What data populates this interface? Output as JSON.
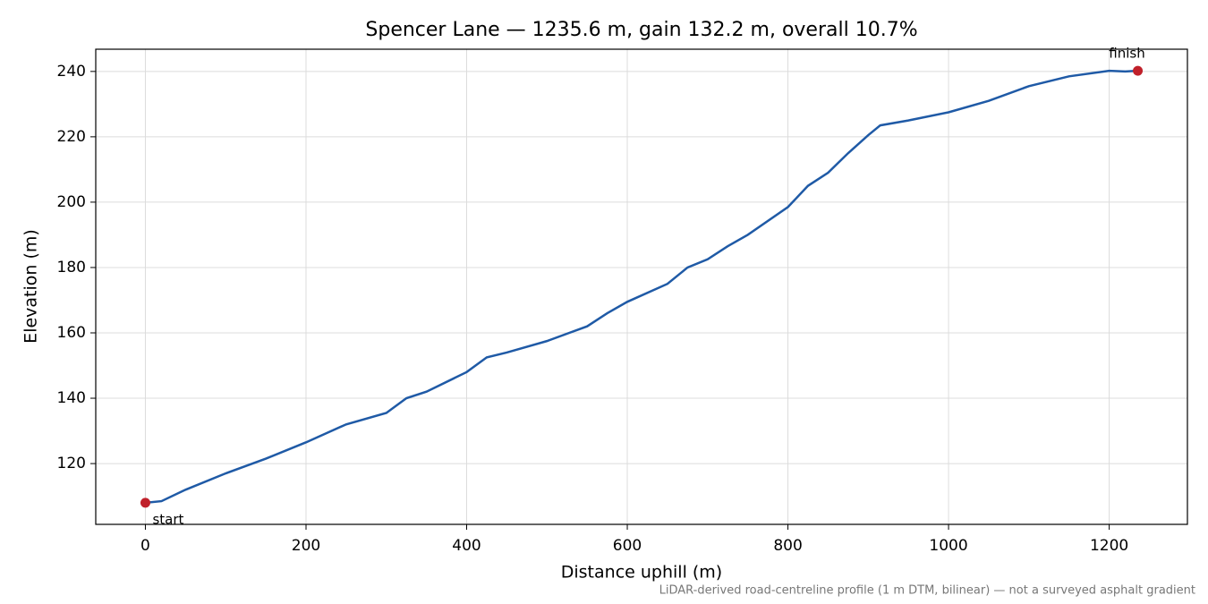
{
  "chart_data": {
    "type": "line",
    "title": "Spencer Lane — 1235.6 m, gain 132.2 m, overall 10.7%",
    "x_label": "Distance uphill (m)",
    "y_label": "Elevation (m)",
    "note": "LiDAR-derived road-centreline profile (1 m DTM, bilinear) — not a surveyed asphalt gradient",
    "x": [
      0,
      20,
      50,
      100,
      150,
      200,
      250,
      300,
      325,
      350,
      400,
      425,
      450,
      500,
      550,
      575,
      600,
      650,
      675,
      700,
      725,
      750,
      800,
      825,
      850,
      875,
      900,
      915,
      950,
      1000,
      1050,
      1100,
      1150,
      1200,
      1220,
      1235.6
    ],
    "values": [
      108.0,
      108.5,
      112,
      117,
      121.5,
      126.5,
      132,
      135.5,
      140,
      142,
      148,
      152.5,
      154,
      157.5,
      162,
      166,
      169.5,
      175,
      180,
      182.5,
      186.5,
      190,
      198.5,
      205,
      209,
      215,
      220.5,
      223.5,
      225,
      227.5,
      231,
      235.5,
      238.5,
      240.2,
      240,
      240.2
    ],
    "color": "#1f5aa6",
    "markers": [
      {
        "label": "start",
        "x": 0,
        "y": 108.0
      },
      {
        "label": "finish",
        "x": 1235.6,
        "y": 240.2
      }
    ],
    "marker_color": "#c0202a",
    "xlim": [
      -61.8,
      1297.4
    ],
    "ylim": [
      101.4,
      246.8
    ],
    "xticks": [
      0,
      200,
      400,
      600,
      800,
      1000,
      1200
    ],
    "yticks": [
      120,
      140,
      160,
      180,
      200,
      220,
      240
    ],
    "grid": true
  }
}
